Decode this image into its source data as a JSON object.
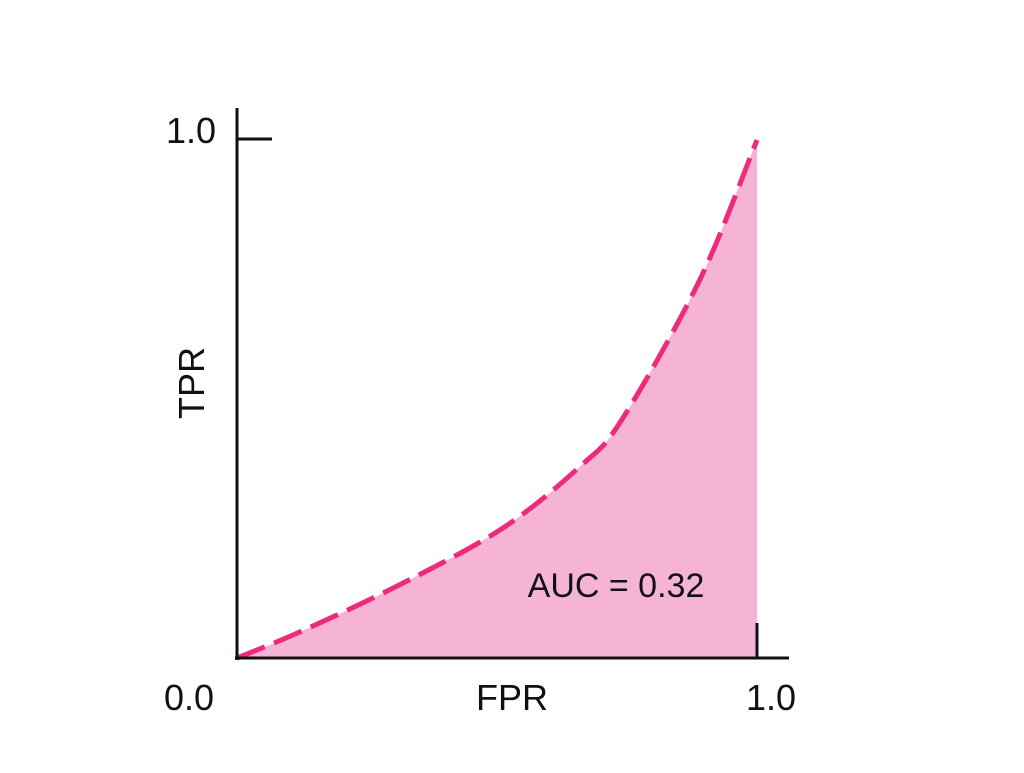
{
  "chart_data": {
    "type": "area",
    "title": "",
    "xlabel": "FPR",
    "ylabel": "TPR",
    "xlim": [
      0,
      1
    ],
    "ylim": [
      0,
      1
    ],
    "x_tick_labels": [
      "0.0",
      "1.0"
    ],
    "y_tick_labels": [
      "1.0"
    ],
    "grid": false,
    "annotation": "AUC = 0.32",
    "line_style": "dashed",
    "colors": {
      "line": "#ee2a7b",
      "fill": "#f5b4d5",
      "axis": "#111111"
    },
    "x": [
      0,
      0.12,
      0.31,
      0.51,
      0.66,
      0.74,
      0.89,
      1.0
    ],
    "y": [
      0,
      0.05,
      0.14,
      0.25,
      0.37,
      0.46,
      0.73,
      1.0
    ]
  }
}
